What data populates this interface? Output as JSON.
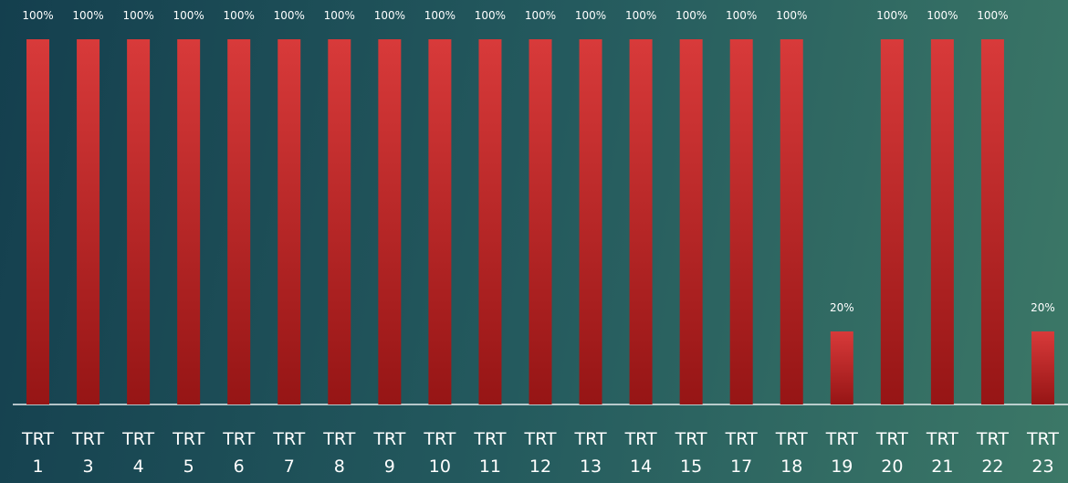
{
  "chart_data": {
    "type": "bar",
    "categories": [
      "TRT 1",
      "TRT 3",
      "TRT 4",
      "TRT 5",
      "TRT 6",
      "TRT 7",
      "TRT 8",
      "TRT 9",
      "TRT 10",
      "TRT 11",
      "TRT 12",
      "TRT 13",
      "TRT 14",
      "TRT 15",
      "TRT 17",
      "TRT 18",
      "TRT 19",
      "TRT 20",
      "TRT 21",
      "TRT 22",
      "TRT 23"
    ],
    "values": [
      100,
      100,
      100,
      100,
      100,
      100,
      100,
      100,
      100,
      100,
      100,
      100,
      100,
      100,
      100,
      100,
      20,
      100,
      100,
      100,
      20
    ],
    "value_labels": [
      "100%",
      "100%",
      "100%",
      "100%",
      "100%",
      "100%",
      "100%",
      "100%",
      "100%",
      "100%",
      "100%",
      "100%",
      "100%",
      "100%",
      "100%",
      "100%",
      "20%",
      "100%",
      "100%",
      "100%",
      "20%"
    ],
    "color": "#c62828",
    "ylim": [
      0,
      100
    ]
  }
}
